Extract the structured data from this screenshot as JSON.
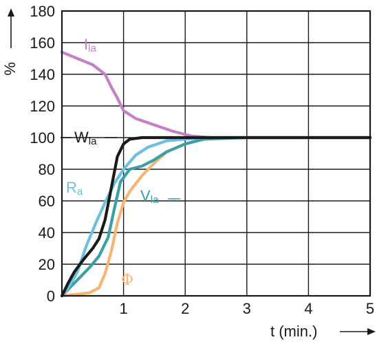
{
  "chart_data": {
    "type": "line",
    "title": "",
    "xlabel": "t (min.)",
    "ylabel": "%",
    "xlim": [
      0,
      5
    ],
    "ylim": [
      0,
      180
    ],
    "xticks": [
      0,
      1,
      2,
      3,
      4,
      5
    ],
    "yticks": [
      0,
      20,
      40,
      60,
      80,
      100,
      120,
      140,
      160,
      180
    ],
    "grid": true,
    "series": [
      {
        "name": "Ila",
        "main": "I",
        "sub": "la",
        "color": "#c77fc6",
        "x": [
          0,
          0.25,
          0.5,
          0.7,
          0.8,
          0.9,
          1.0,
          1.2,
          1.5,
          1.8,
          2.1,
          2.4,
          3,
          4,
          5
        ],
        "values": [
          154,
          150,
          146,
          140,
          132,
          125,
          117,
          112,
          108,
          104,
          101,
          100,
          100,
          100,
          100
        ]
      },
      {
        "name": "Wla",
        "main": "W",
        "sub": "la",
        "color": "#1a1a1a",
        "x": [
          0,
          0.1,
          0.2,
          0.35,
          0.5,
          0.6,
          0.7,
          0.8,
          0.9,
          1.0,
          1.1,
          1.3,
          2,
          3,
          4,
          5
        ],
        "values": [
          0,
          8,
          15,
          23,
          30,
          36,
          48,
          68,
          88,
          96,
          99,
          100,
          100,
          100,
          100,
          100
        ]
      },
      {
        "name": "Ra",
        "main": "R",
        "sub": "a",
        "color": "#6cc0de",
        "x": [
          0,
          0.1,
          0.25,
          0.4,
          0.55,
          0.7,
          0.85,
          1.0,
          1.2,
          1.4,
          1.7,
          2.0,
          2.3,
          3,
          4,
          5
        ],
        "values": [
          0,
          5,
          15,
          32,
          46,
          59,
          71,
          80,
          89,
          94,
          98,
          99,
          100,
          100,
          100,
          100
        ]
      },
      {
        "name": "Vla",
        "main": "V",
        "sub": "la",
        "color": "#3a9fa6",
        "x": [
          0,
          0.15,
          0.3,
          0.45,
          0.6,
          0.75,
          0.85,
          0.95,
          1.1,
          1.3,
          1.5,
          1.7,
          2.0,
          2.3,
          3,
          4,
          5
        ],
        "values": [
          0,
          6,
          12,
          18,
          25,
          37,
          55,
          72,
          80,
          82,
          86,
          91,
          96,
          99,
          100,
          100,
          100
        ]
      },
      {
        "name": "Φ",
        "main": "Φ",
        "sub": "",
        "color": "#f6b572",
        "x": [
          0,
          0.25,
          0.45,
          0.6,
          0.7,
          0.8,
          0.9,
          1.0,
          1.1,
          1.3,
          1.5,
          1.7,
          2.0,
          2.3,
          2.6,
          3,
          4,
          5
        ],
        "values": [
          0,
          1,
          2,
          5,
          14,
          28,
          46,
          59,
          66,
          76,
          84,
          91,
          96,
          99,
          100,
          100,
          100,
          100
        ]
      }
    ]
  }
}
